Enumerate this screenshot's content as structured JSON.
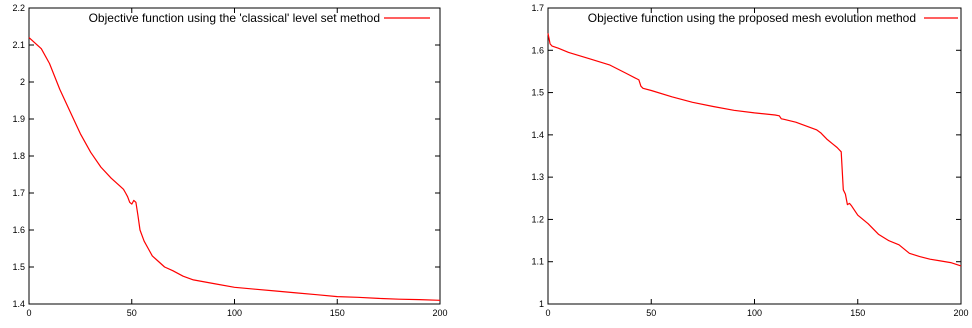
{
  "chart_data": [
    {
      "type": "line",
      "title": "",
      "xlabel": "",
      "ylabel": "",
      "xlim": [
        0,
        200
      ],
      "ylim": [
        1.4,
        2.2
      ],
      "x_ticks": [
        "0",
        "50",
        "100",
        "150",
        "200"
      ],
      "y_ticks": [
        "1.4",
        "1.5",
        "1.6",
        "1.7",
        "1.8",
        "1.9",
        "2",
        "2.1",
        "2.2"
      ],
      "legend_position": "top-right",
      "grid": false,
      "series": [
        {
          "name": "Objective function using the 'classical' level set method",
          "color": "#ff0000",
          "x": [
            0,
            3,
            6,
            10,
            15,
            20,
            25,
            30,
            35,
            40,
            44,
            46,
            47,
            48,
            49,
            50,
            51,
            52,
            53,
            54,
            56,
            58,
            60,
            63,
            66,
            70,
            75,
            80,
            90,
            100,
            110,
            120,
            130,
            140,
            150,
            160,
            170,
            180,
            190,
            200
          ],
          "y": [
            2.12,
            2.105,
            2.09,
            2.05,
            1.98,
            1.92,
            1.86,
            1.81,
            1.77,
            1.74,
            1.72,
            1.71,
            1.7,
            1.69,
            1.675,
            1.67,
            1.68,
            1.675,
            1.64,
            1.6,
            1.57,
            1.55,
            1.53,
            1.515,
            1.5,
            1.49,
            1.475,
            1.465,
            1.455,
            1.445,
            1.44,
            1.435,
            1.43,
            1.425,
            1.42,
            1.418,
            1.415,
            1.413,
            1.412,
            1.41
          ]
        }
      ]
    },
    {
      "type": "line",
      "title": "",
      "xlabel": "",
      "ylabel": "",
      "xlim": [
        0,
        200
      ],
      "ylim": [
        1,
        1.7
      ],
      "x_ticks": [
        "0",
        "50",
        "100",
        "150",
        "200"
      ],
      "y_ticks": [
        "1",
        "1.1",
        "1.2",
        "1.3",
        "1.4",
        "1.5",
        "1.6",
        "1.7"
      ],
      "legend_position": "top-right",
      "grid": false,
      "series": [
        {
          "name": "Objective function using the proposed mesh evolution  method",
          "color": "#ff0000",
          "x": [
            0,
            1,
            2,
            5,
            10,
            20,
            30,
            38,
            44,
            45,
            46,
            50,
            60,
            70,
            80,
            90,
            100,
            110,
            112,
            113,
            114,
            120,
            130,
            132,
            135,
            138,
            140,
            142,
            143,
            144,
            145,
            146,
            147,
            148,
            150,
            155,
            160,
            165,
            170,
            175,
            180,
            185,
            190,
            195,
            200
          ],
          "y": [
            1.64,
            1.615,
            1.61,
            1.605,
            1.595,
            1.58,
            1.565,
            1.545,
            1.53,
            1.515,
            1.51,
            1.505,
            1.49,
            1.477,
            1.467,
            1.458,
            1.452,
            1.447,
            1.445,
            1.438,
            1.437,
            1.43,
            1.412,
            1.405,
            1.39,
            1.378,
            1.37,
            1.36,
            1.27,
            1.26,
            1.235,
            1.238,
            1.232,
            1.225,
            1.21,
            1.19,
            1.165,
            1.15,
            1.14,
            1.12,
            1.112,
            1.106,
            1.102,
            1.098,
            1.09
          ]
        }
      ]
    }
  ]
}
